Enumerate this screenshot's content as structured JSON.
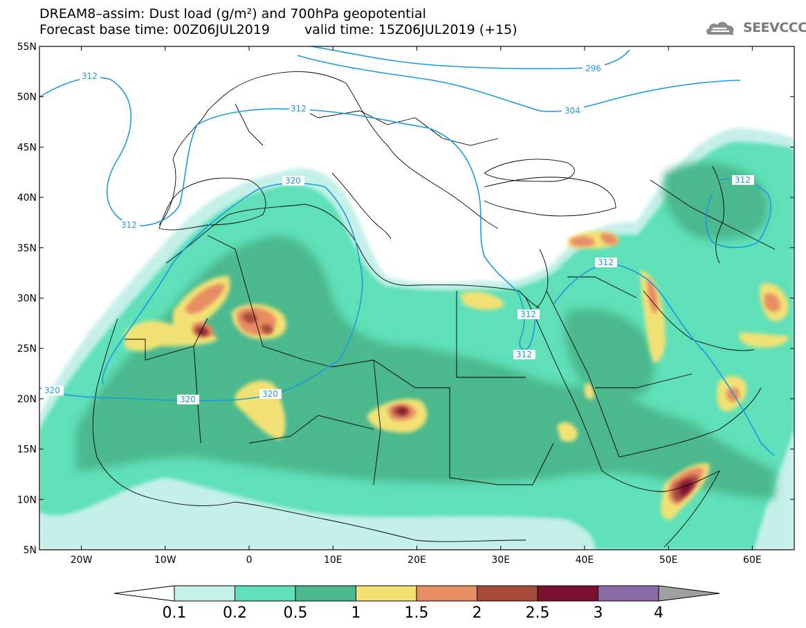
{
  "title": {
    "line1": "DREAM8–assim: Dust load (g/m²) and 700hPa geopotential",
    "line2_left": "Forecast base time: 00Z06JUL2019",
    "line2_right": "valid time: 15Z06JUL2019 (+15)"
  },
  "logo": {
    "text": "SEEVCCC",
    "icon": "cloud-logo-icon"
  },
  "map": {
    "lat_ticks": [
      "55N",
      "50N",
      "45N",
      "40N",
      "35N",
      "30N",
      "25N",
      "20N",
      "15N",
      "10N",
      "5N"
    ],
    "lon_ticks": [
      "20W",
      "10W",
      "0",
      "10E",
      "20E",
      "30E",
      "40E",
      "50E",
      "60E"
    ],
    "lon_range": [
      -25,
      65
    ],
    "lat_range": [
      5,
      55
    ],
    "contour_labels": [
      "312",
      "312",
      "312",
      "320",
      "296",
      "304",
      "312",
      "312",
      "312",
      "312",
      "320",
      "320",
      "320"
    ]
  },
  "legend": {
    "labels": [
      "0.1",
      "0.2",
      "0.5",
      "1",
      "1.5",
      "2",
      "2.5",
      "3",
      "4"
    ],
    "colors": [
      "#ffffff",
      "#c4f0e8",
      "#5ee0b8",
      "#4cb88e",
      "#f2e274",
      "#e88c64",
      "#a84a3a",
      "#7c1030",
      "#8a6aa6",
      "#a0a0a0"
    ]
  },
  "colors": {
    "contour": "#1a9be0",
    "land_boundary": "#000000"
  }
}
